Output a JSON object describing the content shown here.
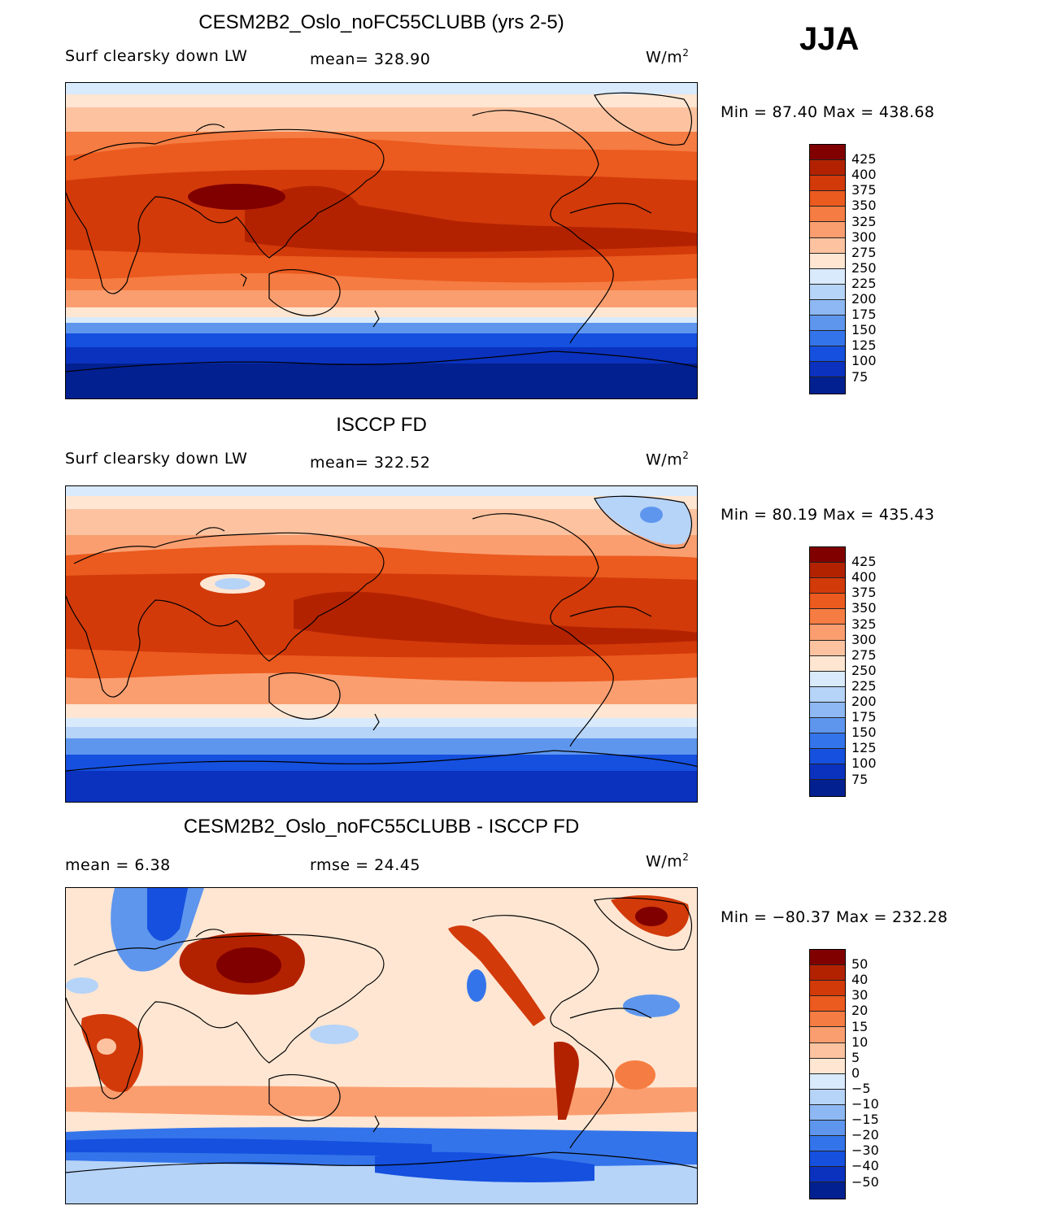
{
  "season": "JJA",
  "panels": [
    {
      "title": "CESM2B2_Oslo_noFC55CLUBB (yrs 2-5)",
      "variable": "Surf clearsky down LW",
      "stat1": "mean=  328.90",
      "stat2": "",
      "units": "W/m",
      "units_sup": "2",
      "minmax": "Min =   87.40  Max  =  438.68",
      "colorbar": {
        "labels": [
          "425",
          "400",
          "375",
          "350",
          "325",
          "300",
          "275",
          "250",
          "225",
          "200",
          "175",
          "150",
          "125",
          "100",
          "75"
        ],
        "colors": [
          "#800000",
          "#B32200",
          "#D23A0A",
          "#EB5A1E",
          "#F57C42",
          "#FA9E70",
          "#FDC3A0",
          "#FEE6D2",
          "#D8EAFB",
          "#B6D3F8",
          "#8DB8F3",
          "#5E96EE",
          "#3474EA",
          "#1550DF",
          "#0A32BF",
          "#02208F"
        ]
      }
    },
    {
      "title": "ISCCP FD",
      "variable": "Surf clearsky down LW",
      "stat1": "mean=  322.52",
      "stat2": "",
      "units": "W/m",
      "units_sup": "2",
      "minmax": "Min =   80.19  Max  =  435.43",
      "colorbar": {
        "labels": [
          "425",
          "400",
          "375",
          "350",
          "325",
          "300",
          "275",
          "250",
          "225",
          "200",
          "175",
          "150",
          "125",
          "100",
          "75"
        ],
        "colors": [
          "#800000",
          "#B32200",
          "#D23A0A",
          "#EB5A1E",
          "#F57C42",
          "#FA9E70",
          "#FDC3A0",
          "#FEE6D2",
          "#D8EAFB",
          "#B6D3F8",
          "#8DB8F3",
          "#5E96EE",
          "#3474EA",
          "#1550DF",
          "#0A32BF",
          "#02208F"
        ]
      }
    },
    {
      "title": "CESM2B2_Oslo_noFC55CLUBB - ISCCP FD",
      "variable": "",
      "stat1": "mean =    6.38",
      "stat2": "rmse =   24.45",
      "units": "W/m",
      "units_sup": "2",
      "minmax": "Min  = −80.37  Max  =  232.28",
      "colorbar": {
        "labels": [
          "50",
          "40",
          "30",
          "20",
          "15",
          "10",
          "5",
          "0",
          "−5",
          "−10",
          "−15",
          "−20",
          "−30",
          "−40",
          "−50"
        ],
        "colors": [
          "#800000",
          "#B32200",
          "#D23A0A",
          "#EB5A1E",
          "#F57C42",
          "#FA9E70",
          "#FDC3A0",
          "#FEE6D2",
          "#D8EAFB",
          "#B6D3F8",
          "#8DB8F3",
          "#5E96EE",
          "#3474EA",
          "#1550DF",
          "#0A32BF",
          "#02208F"
        ]
      }
    }
  ]
}
